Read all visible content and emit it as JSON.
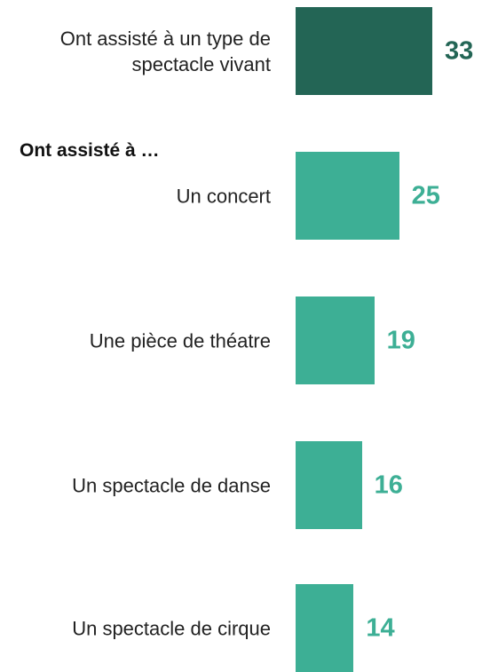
{
  "chart_data": {
    "type": "bar",
    "orientation": "horizontal",
    "group_label": "Ont assisté à …",
    "categories": [
      "Ont assisté à un type de spectacle vivant",
      "Un concert",
      "Une pièce de théatre",
      "Un spectacle de danse",
      "Un spectacle de cirque"
    ],
    "values": [
      33,
      25,
      19,
      16,
      14
    ],
    "colors": [
      "#236555",
      "#3daf95",
      "#3daf95",
      "#3daf95",
      "#3daf95"
    ]
  }
}
